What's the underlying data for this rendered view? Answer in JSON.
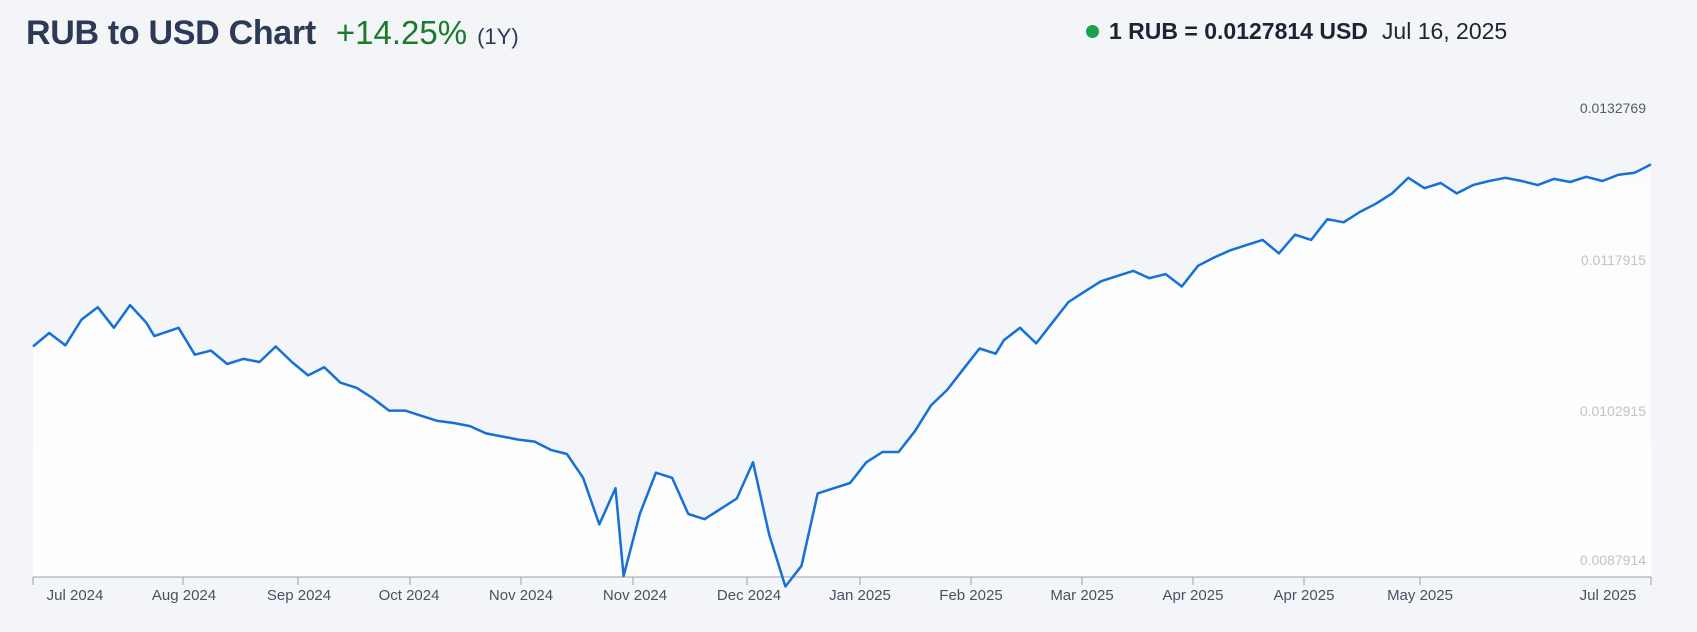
{
  "header": {
    "title": "RUB to USD Chart",
    "change": "+14.25%",
    "period": "(1Y)"
  },
  "rate": {
    "text": "1 RUB = 0.0127814 USD",
    "date": "Jul 16, 2025"
  },
  "colors": {
    "line": "#1570d8",
    "positive": "#1b7a2b",
    "status_dot": "#1aa34a"
  },
  "chart_data": {
    "type": "line",
    "title": "RUB to USD Chart",
    "ylim": [
      0.0087914,
      0.0132769
    ],
    "yticks": [
      "0.0132769",
      "0.0117915",
      "0.0102915",
      "0.0087914"
    ],
    "xticks": [
      "Jul 2024",
      "Aug 2024",
      "Sep 2024",
      "Oct 2024",
      "Nov 2024",
      "Nov 2024",
      "Dec 2024",
      "Jan 2025",
      "Feb 2025",
      "Mar 2025",
      "Apr 2025",
      "Apr 2025",
      "May 2025",
      "Jul 2025"
    ],
    "series": [
      {
        "x": [
          0,
          0.01,
          0.02,
          0.03,
          0.04,
          0.05,
          0.06,
          0.07,
          0.075,
          0.09,
          0.1,
          0.11,
          0.12,
          0.13,
          0.14,
          0.15,
          0.16,
          0.17,
          0.18,
          0.19,
          0.2,
          0.21,
          0.22,
          0.23,
          0.24,
          0.25,
          0.26,
          0.27,
          0.28,
          0.29,
          0.3,
          0.31,
          0.32,
          0.33,
          0.34,
          0.35,
          0.36,
          0.365,
          0.375,
          0.385,
          0.395,
          0.405,
          0.415,
          0.425,
          0.435,
          0.445,
          0.455,
          0.465,
          0.475,
          0.485,
          0.495,
          0.505,
          0.515,
          0.525,
          0.535,
          0.545,
          0.555,
          0.565,
          0.575,
          0.585,
          0.595,
          0.6,
          0.61,
          0.62,
          0.63,
          0.64,
          0.65,
          0.66,
          0.67,
          0.68,
          0.69,
          0.7,
          0.71,
          0.72,
          0.73,
          0.74,
          0.75,
          0.76,
          0.77,
          0.78,
          0.79,
          0.8,
          0.81,
          0.82,
          0.83,
          0.84,
          0.85,
          0.86,
          0.87,
          0.88,
          0.89,
          0.9,
          0.91,
          0.92,
          0.93,
          0.94,
          0.95,
          0.96,
          0.97,
          0.98,
          0.99,
          1.0
        ],
        "y": [
          0.01102,
          0.01115,
          0.01103,
          0.01128,
          0.0114,
          0.0112,
          0.01142,
          0.01125,
          0.01112,
          0.0112,
          0.01094,
          0.01098,
          0.01085,
          0.0109,
          0.01087,
          0.01102,
          0.01087,
          0.01074,
          0.01082,
          0.01067,
          0.01062,
          0.01052,
          0.0104,
          0.0104,
          0.01035,
          0.0103,
          0.01028,
          0.01025,
          0.01018,
          0.01015,
          0.01012,
          0.0101,
          0.01002,
          0.00998,
          0.00975,
          0.0093,
          0.00965,
          0.0088,
          0.0094,
          0.0098,
          0.00975,
          0.0094,
          0.00935,
          0.00945,
          0.00955,
          0.0099,
          0.0092,
          0.0087,
          0.0089,
          0.0096,
          0.00965,
          0.0097,
          0.0099,
          0.01,
          0.01,
          0.0102,
          0.01045,
          0.0106,
          0.0108,
          0.011,
          0.01095,
          0.01108,
          0.0112,
          0.01105,
          0.01125,
          0.01145,
          0.01155,
          0.01165,
          0.0117,
          0.01175,
          0.01168,
          0.01172,
          0.0116,
          0.0118,
          0.01188,
          0.01195,
          0.012,
          0.01205,
          0.01192,
          0.0121,
          0.01205,
          0.01225,
          0.01222,
          0.01232,
          0.0124,
          0.0125,
          0.01265,
          0.01255,
          0.0126,
          0.0125,
          0.01258,
          0.01262,
          0.01265,
          0.01262,
          0.01258,
          0.01264,
          0.01261,
          0.01266,
          0.01262,
          0.01268,
          0.0127,
          0.01278
        ]
      }
    ],
    "grid": false
  }
}
